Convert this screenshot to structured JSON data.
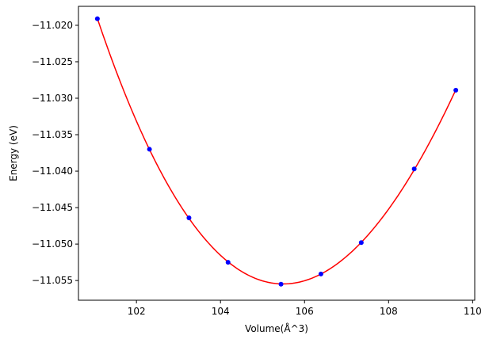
{
  "chart_data": {
    "type": "scatter",
    "title": "",
    "xlabel": "Volume(Å^3)",
    "ylabel": "Energy (eV)",
    "xlim": [
      100.62,
      110.05
    ],
    "ylim": [
      -11.0577,
      -11.0174
    ],
    "x_ticks": [
      102,
      104,
      106,
      108,
      110
    ],
    "y_ticks": [
      -11.055,
      -11.05,
      -11.045,
      -11.04,
      -11.035,
      -11.03,
      -11.025,
      -11.02
    ],
    "x_tick_labels": [
      "102",
      "104",
      "106",
      "108",
      "110"
    ],
    "y_tick_labels": [
      "−11.055",
      "−11.050",
      "−11.045",
      "−11.040",
      "−11.035",
      "−11.030",
      "−11.025",
      "−11.020"
    ],
    "grid": false,
    "legend": "none",
    "series": [
      {
        "kind": "points",
        "color": "#0000ff",
        "marker": "circle",
        "x": [
          101.07,
          102.31,
          103.25,
          104.18,
          105.44,
          106.39,
          107.35,
          108.61,
          109.6
        ],
        "y": [
          -11.0191,
          -11.037,
          -11.0464,
          -11.0525,
          -11.0555,
          -11.0541,
          -11.0498,
          -11.0397,
          -11.0289
        ]
      },
      {
        "kind": "fit-curve",
        "color": "#ff0000",
        "x": [
          101.07,
          102.31,
          103.25,
          104.18,
          105.44,
          106.39,
          107.35,
          108.61,
          109.6
        ],
        "y": [
          -11.0191,
          -11.037,
          -11.0464,
          -11.0525,
          -11.0555,
          -11.0541,
          -11.0498,
          -11.0397,
          -11.0289
        ]
      }
    ]
  }
}
